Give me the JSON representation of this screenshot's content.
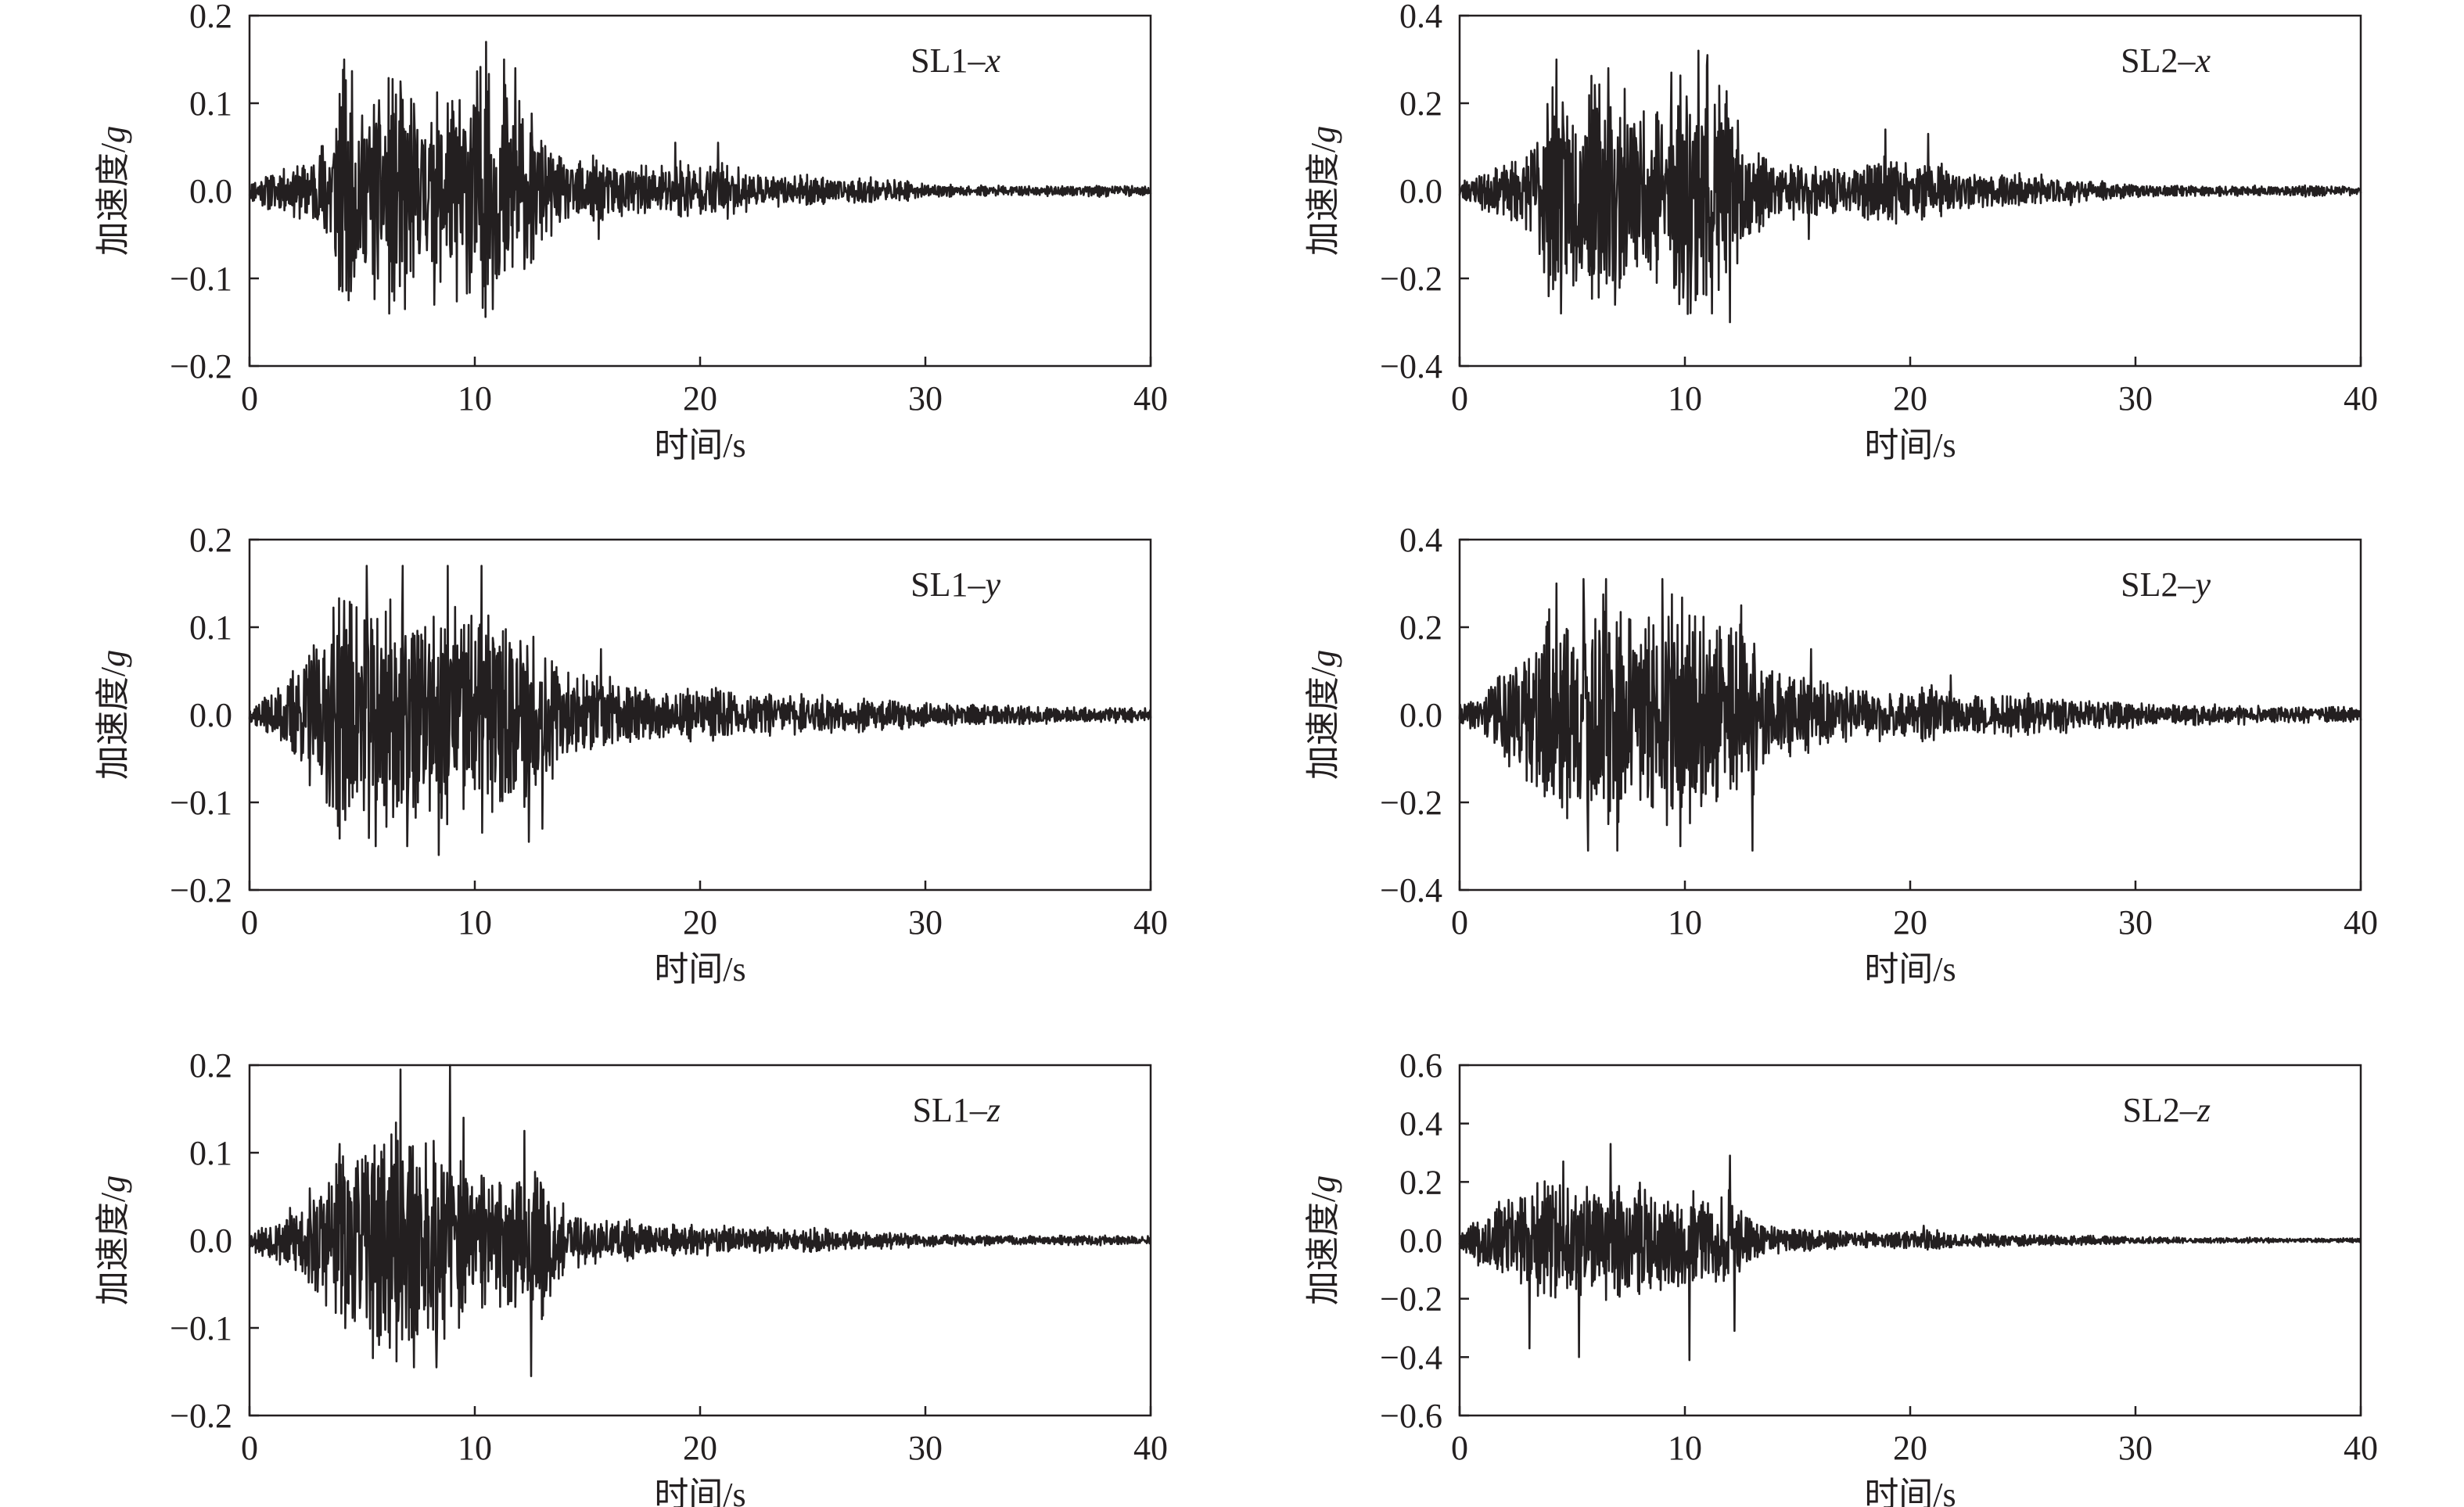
{
  "figure": {
    "line_color": "#231f20",
    "background": "#ffffff"
  },
  "chart_data": [
    {
      "id": "sl1-x",
      "type": "line",
      "label_prefix": "SL1–",
      "label_component": "x",
      "xlabel": "时间/s",
      "ylabel_prefix": "加速度/",
      "ylabel_unit": "g",
      "xlim": [
        0,
        40
      ],
      "ylim": [
        -0.2,
        0.2
      ],
      "xticks": [
        0,
        10,
        20,
        30,
        40
      ],
      "yticks": [
        -0.2,
        -0.1,
        0.0,
        0.1,
        0.2
      ],
      "ytick_labels": [
        "−0.2",
        "−0.1",
        "0.0",
        "0.1",
        "0.2"
      ],
      "grid": false,
      "envelope": {
        "t": [
          0,
          1,
          2,
          3,
          4,
          5,
          6,
          7,
          8,
          9,
          10,
          11,
          12,
          13,
          14,
          15,
          16,
          17,
          18,
          19,
          20,
          21,
          22,
          23,
          24,
          25,
          26,
          27,
          28,
          29,
          30,
          31,
          32,
          33,
          34,
          35,
          36,
          37,
          38,
          39,
          40
        ],
        "a": [
          0.01,
          0.02,
          0.025,
          0.04,
          0.12,
          0.1,
          0.12,
          0.1,
          0.09,
          0.1,
          0.14,
          0.12,
          0.1,
          0.05,
          0.03,
          0.035,
          0.03,
          0.025,
          0.025,
          0.035,
          0.025,
          0.03,
          0.02,
          0.015,
          0.015,
          0.015,
          0.012,
          0.014,
          0.012,
          0.01,
          0.006,
          0.006,
          0.005,
          0.005,
          0.005,
          0.005,
          0.005,
          0.005,
          0.006,
          0.005,
          0.004
        ]
      },
      "peaks": [
        {
          "t": 4.2,
          "a": 0.15
        },
        {
          "t": 4.4,
          "a": -0.125
        },
        {
          "t": 6.7,
          "a": 0.125
        },
        {
          "t": 6.9,
          "a": -0.135
        },
        {
          "t": 10.5,
          "a": 0.17
        },
        {
          "t": 10.8,
          "a": -0.135
        },
        {
          "t": 11.3,
          "a": 0.15
        },
        {
          "t": 11.8,
          "a": 0.14
        },
        {
          "t": 8.8,
          "a": 0.1
        },
        {
          "t": 8.2,
          "a": -0.13
        },
        {
          "t": 15.5,
          "a": -0.055
        },
        {
          "t": 18.9,
          "a": 0.055
        },
        {
          "t": 20.8,
          "a": 0.055
        }
      ],
      "seed": 11
    },
    {
      "id": "sl2-x",
      "type": "line",
      "label_prefix": "SL2–",
      "label_component": "x",
      "xlabel": "时间/s",
      "ylabel_prefix": "加速度/",
      "ylabel_unit": "g",
      "xlim": [
        0,
        40
      ],
      "ylim": [
        -0.4,
        0.4
      ],
      "xticks": [
        0,
        10,
        20,
        30,
        40
      ],
      "yticks": [
        -0.4,
        -0.2,
        0.0,
        0.2,
        0.4
      ],
      "ytick_labels": [
        "−0.4",
        "−0.2",
        "0.0",
        "0.2",
        "0.4"
      ],
      "grid": false,
      "envelope": {
        "t": [
          0,
          1,
          2,
          3,
          4,
          5,
          6,
          7,
          8,
          9,
          10,
          11,
          12,
          13,
          14,
          15,
          16,
          17,
          18,
          19,
          20,
          21,
          22,
          23,
          24,
          25,
          26,
          27,
          28,
          29,
          30,
          31,
          32,
          33,
          34,
          35,
          36,
          37,
          38,
          39,
          40
        ],
        "a": [
          0.02,
          0.04,
          0.05,
          0.08,
          0.22,
          0.2,
          0.22,
          0.2,
          0.16,
          0.2,
          0.26,
          0.24,
          0.18,
          0.08,
          0.06,
          0.06,
          0.05,
          0.05,
          0.05,
          0.07,
          0.05,
          0.06,
          0.04,
          0.035,
          0.035,
          0.035,
          0.03,
          0.03,
          0.025,
          0.02,
          0.012,
          0.012,
          0.01,
          0.01,
          0.01,
          0.01,
          0.01,
          0.01,
          0.012,
          0.01,
          0.008
        ]
      },
      "peaks": [
        {
          "t": 4.3,
          "a": 0.3
        },
        {
          "t": 4.5,
          "a": -0.28
        },
        {
          "t": 6.6,
          "a": 0.28
        },
        {
          "t": 6.9,
          "a": -0.26
        },
        {
          "t": 10.6,
          "a": 0.32
        },
        {
          "t": 11.0,
          "a": 0.31
        },
        {
          "t": 11.2,
          "a": -0.28
        },
        {
          "t": 12.0,
          "a": -0.3
        },
        {
          "t": 9.4,
          "a": 0.27
        },
        {
          "t": 18.9,
          "a": 0.14
        },
        {
          "t": 20.8,
          "a": 0.13
        },
        {
          "t": 15.5,
          "a": -0.11
        }
      ],
      "seed": 23
    },
    {
      "id": "sl1-y",
      "type": "line",
      "label_prefix": "SL1–",
      "label_component": "y",
      "xlabel": "时间/s",
      "ylabel_prefix": "加速度/",
      "ylabel_unit": "g",
      "xlim": [
        0,
        40
      ],
      "ylim": [
        -0.2,
        0.2
      ],
      "xticks": [
        0,
        10,
        20,
        30,
        40
      ],
      "yticks": [
        -0.2,
        -0.1,
        0.0,
        0.1,
        0.2
      ],
      "ytick_labels": [
        "−0.2",
        "−0.1",
        "0.0",
        "0.1",
        "0.2"
      ],
      "grid": false,
      "envelope": {
        "t": [
          0,
          1,
          2,
          3,
          4,
          5,
          6,
          7,
          8,
          9,
          10,
          11,
          12,
          13,
          14,
          15,
          16,
          17,
          18,
          19,
          20,
          21,
          22,
          23,
          24,
          25,
          26,
          27,
          28,
          29,
          30,
          31,
          32,
          33,
          34,
          35,
          36,
          37,
          38,
          39,
          40
        ],
        "a": [
          0.01,
          0.02,
          0.05,
          0.08,
          0.12,
          0.12,
          0.12,
          0.11,
          0.1,
          0.11,
          0.12,
          0.1,
          0.1,
          0.08,
          0.04,
          0.04,
          0.035,
          0.03,
          0.025,
          0.025,
          0.025,
          0.03,
          0.02,
          0.02,
          0.02,
          0.02,
          0.018,
          0.018,
          0.015,
          0.015,
          0.012,
          0.01,
          0.01,
          0.01,
          0.01,
          0.01,
          0.008,
          0.008,
          0.008,
          0.008,
          0.006
        ]
      },
      "peaks": [
        {
          "t": 5.2,
          "a": 0.17
        },
        {
          "t": 5.6,
          "a": -0.15
        },
        {
          "t": 6.8,
          "a": 0.17
        },
        {
          "t": 7.0,
          "a": -0.15
        },
        {
          "t": 8.8,
          "a": 0.17
        },
        {
          "t": 8.4,
          "a": -0.16
        },
        {
          "t": 10.3,
          "a": 0.17
        },
        {
          "t": 12.4,
          "a": -0.145
        },
        {
          "t": 13.0,
          "a": -0.13
        },
        {
          "t": 15.6,
          "a": 0.075
        },
        {
          "t": 4.2,
          "a": 0.13
        }
      ],
      "seed": 37
    },
    {
      "id": "sl2-y",
      "type": "line",
      "label_prefix": "SL2–",
      "label_component": "y",
      "xlabel": "时间/s",
      "ylabel_prefix": "加速度/",
      "ylabel_unit": "g",
      "xlim": [
        0,
        40
      ],
      "ylim": [
        -0.4,
        0.4
      ],
      "xticks": [
        0,
        10,
        20,
        30,
        40
      ],
      "yticks": [
        -0.4,
        -0.2,
        0.0,
        0.2,
        0.4
      ],
      "ytick_labels": [
        "−0.4",
        "−0.2",
        "0.0",
        "0.2",
        "0.4"
      ],
      "grid": false,
      "envelope": {
        "t": [
          0,
          1,
          2,
          3,
          4,
          5,
          6,
          7,
          8,
          9,
          10,
          11,
          12,
          13,
          14,
          15,
          16,
          17,
          18,
          19,
          20,
          21,
          22,
          23,
          24,
          25,
          26,
          27,
          28,
          29,
          30,
          31,
          32,
          33,
          34,
          35,
          36,
          37,
          38,
          39,
          40
        ],
        "a": [
          0.02,
          0.04,
          0.1,
          0.15,
          0.2,
          0.24,
          0.24,
          0.22,
          0.2,
          0.22,
          0.22,
          0.2,
          0.2,
          0.16,
          0.08,
          0.08,
          0.07,
          0.06,
          0.05,
          0.05,
          0.05,
          0.06,
          0.04,
          0.04,
          0.04,
          0.04,
          0.035,
          0.035,
          0.03,
          0.03,
          0.025,
          0.02,
          0.02,
          0.02,
          0.02,
          0.02,
          0.016,
          0.016,
          0.016,
          0.016,
          0.012
        ]
      },
      "peaks": [
        {
          "t": 4.3,
          "a": 0.3
        },
        {
          "t": 5.5,
          "a": 0.31
        },
        {
          "t": 5.7,
          "a": -0.31
        },
        {
          "t": 6.5,
          "a": 0.31
        },
        {
          "t": 7.0,
          "a": -0.31
        },
        {
          "t": 9.0,
          "a": 0.31
        },
        {
          "t": 9.8,
          "a": -0.3
        },
        {
          "t": 12.5,
          "a": 0.25
        },
        {
          "t": 13.0,
          "a": -0.31
        },
        {
          "t": 15.6,
          "a": 0.15
        },
        {
          "t": 21.8,
          "a": 0.09
        }
      ],
      "seed": 41
    },
    {
      "id": "sl1-z",
      "type": "line",
      "label_prefix": "SL1–",
      "label_component": "z",
      "xlabel": "时间/s",
      "ylabel_prefix": "加速度/",
      "ylabel_unit": "g",
      "xlim": [
        0,
        40
      ],
      "ylim": [
        -0.2,
        0.2
      ],
      "xticks": [
        0,
        10,
        20,
        30,
        40
      ],
      "yticks": [
        -0.2,
        -0.1,
        0.0,
        0.1,
        0.2
      ],
      "ytick_labels": [
        "−0.2",
        "−0.1",
        "0.0",
        "0.1",
        "0.2"
      ],
      "grid": false,
      "envelope": {
        "t": [
          0,
          1,
          2,
          3,
          4,
          5,
          6,
          7,
          8,
          9,
          10,
          11,
          12,
          13,
          14,
          15,
          16,
          17,
          18,
          19,
          20,
          21,
          22,
          23,
          24,
          25,
          26,
          27,
          28,
          29,
          30,
          31,
          32,
          33,
          34,
          35,
          36,
          37,
          38,
          39,
          40
        ],
        "a": [
          0.01,
          0.02,
          0.035,
          0.06,
          0.09,
          0.1,
          0.12,
          0.11,
          0.1,
          0.1,
          0.07,
          0.06,
          0.08,
          0.08,
          0.03,
          0.025,
          0.02,
          0.02,
          0.015,
          0.015,
          0.015,
          0.015,
          0.012,
          0.012,
          0.01,
          0.015,
          0.01,
          0.01,
          0.008,
          0.008,
          0.006,
          0.006,
          0.005,
          0.005,
          0.005,
          0.005,
          0.005,
          0.005,
          0.005,
          0.004,
          0.004
        ]
      },
      "peaks": [
        {
          "t": 6.7,
          "a": 0.195
        },
        {
          "t": 7.3,
          "a": -0.145
        },
        {
          "t": 8.9,
          "a": 0.2
        },
        {
          "t": 8.3,
          "a": -0.145
        },
        {
          "t": 12.5,
          "a": -0.155
        },
        {
          "t": 12.2,
          "a": 0.125
        },
        {
          "t": 4.0,
          "a": 0.11
        },
        {
          "t": 9.5,
          "a": 0.14
        }
      ],
      "seed": 53
    },
    {
      "id": "sl2-z",
      "type": "line",
      "label_prefix": "SL2–",
      "label_component": "z",
      "xlabel": "时间/s",
      "ylabel_prefix": "加速度/",
      "ylabel_unit": "g",
      "xlim": [
        0,
        40
      ],
      "ylim": [
        -0.6,
        0.6
      ],
      "xticks": [
        0,
        10,
        20,
        30,
        40
      ],
      "yticks": [
        -0.6,
        -0.4,
        -0.2,
        0.0,
        0.2,
        0.4,
        0.6
      ],
      "ytick_labels": [
        "−0.6",
        "−0.4",
        "−0.2",
        "0.0",
        "0.2",
        "0.4",
        "0.6"
      ],
      "grid": false,
      "envelope": {
        "t": [
          0,
          1,
          2,
          3,
          4,
          5,
          6,
          7,
          8,
          9,
          10,
          11,
          12,
          13,
          14,
          15,
          16,
          17,
          18,
          19,
          20,
          21,
          22,
          23,
          24,
          25,
          26,
          27,
          28,
          29,
          30,
          31,
          32,
          33,
          34,
          35,
          36,
          37,
          38,
          39,
          40
        ],
        "a": [
          0.03,
          0.08,
          0.12,
          0.15,
          0.17,
          0.18,
          0.18,
          0.18,
          0.16,
          0.16,
          0.15,
          0.15,
          0.14,
          0.05,
          0.04,
          0.03,
          0.03,
          0.025,
          0.025,
          0.025,
          0.025,
          0.03,
          0.02,
          0.02,
          0.02,
          0.02,
          0.015,
          0.015,
          0.015,
          0.012,
          0.01,
          0.01,
          0.008,
          0.008,
          0.008,
          0.008,
          0.008,
          0.006,
          0.006,
          0.006,
          0.006
        ]
      },
      "peaks": [
        {
          "t": 3.1,
          "a": -0.37
        },
        {
          "t": 5.3,
          "a": -0.4
        },
        {
          "t": 6.7,
          "a": 0.33
        },
        {
          "t": 10.2,
          "a": -0.41
        },
        {
          "t": 12.2,
          "a": -0.31
        },
        {
          "t": 12.0,
          "a": 0.29
        },
        {
          "t": 4.6,
          "a": 0.27
        },
        {
          "t": 20.6,
          "a": 0.05
        }
      ],
      "seed": 67
    }
  ]
}
